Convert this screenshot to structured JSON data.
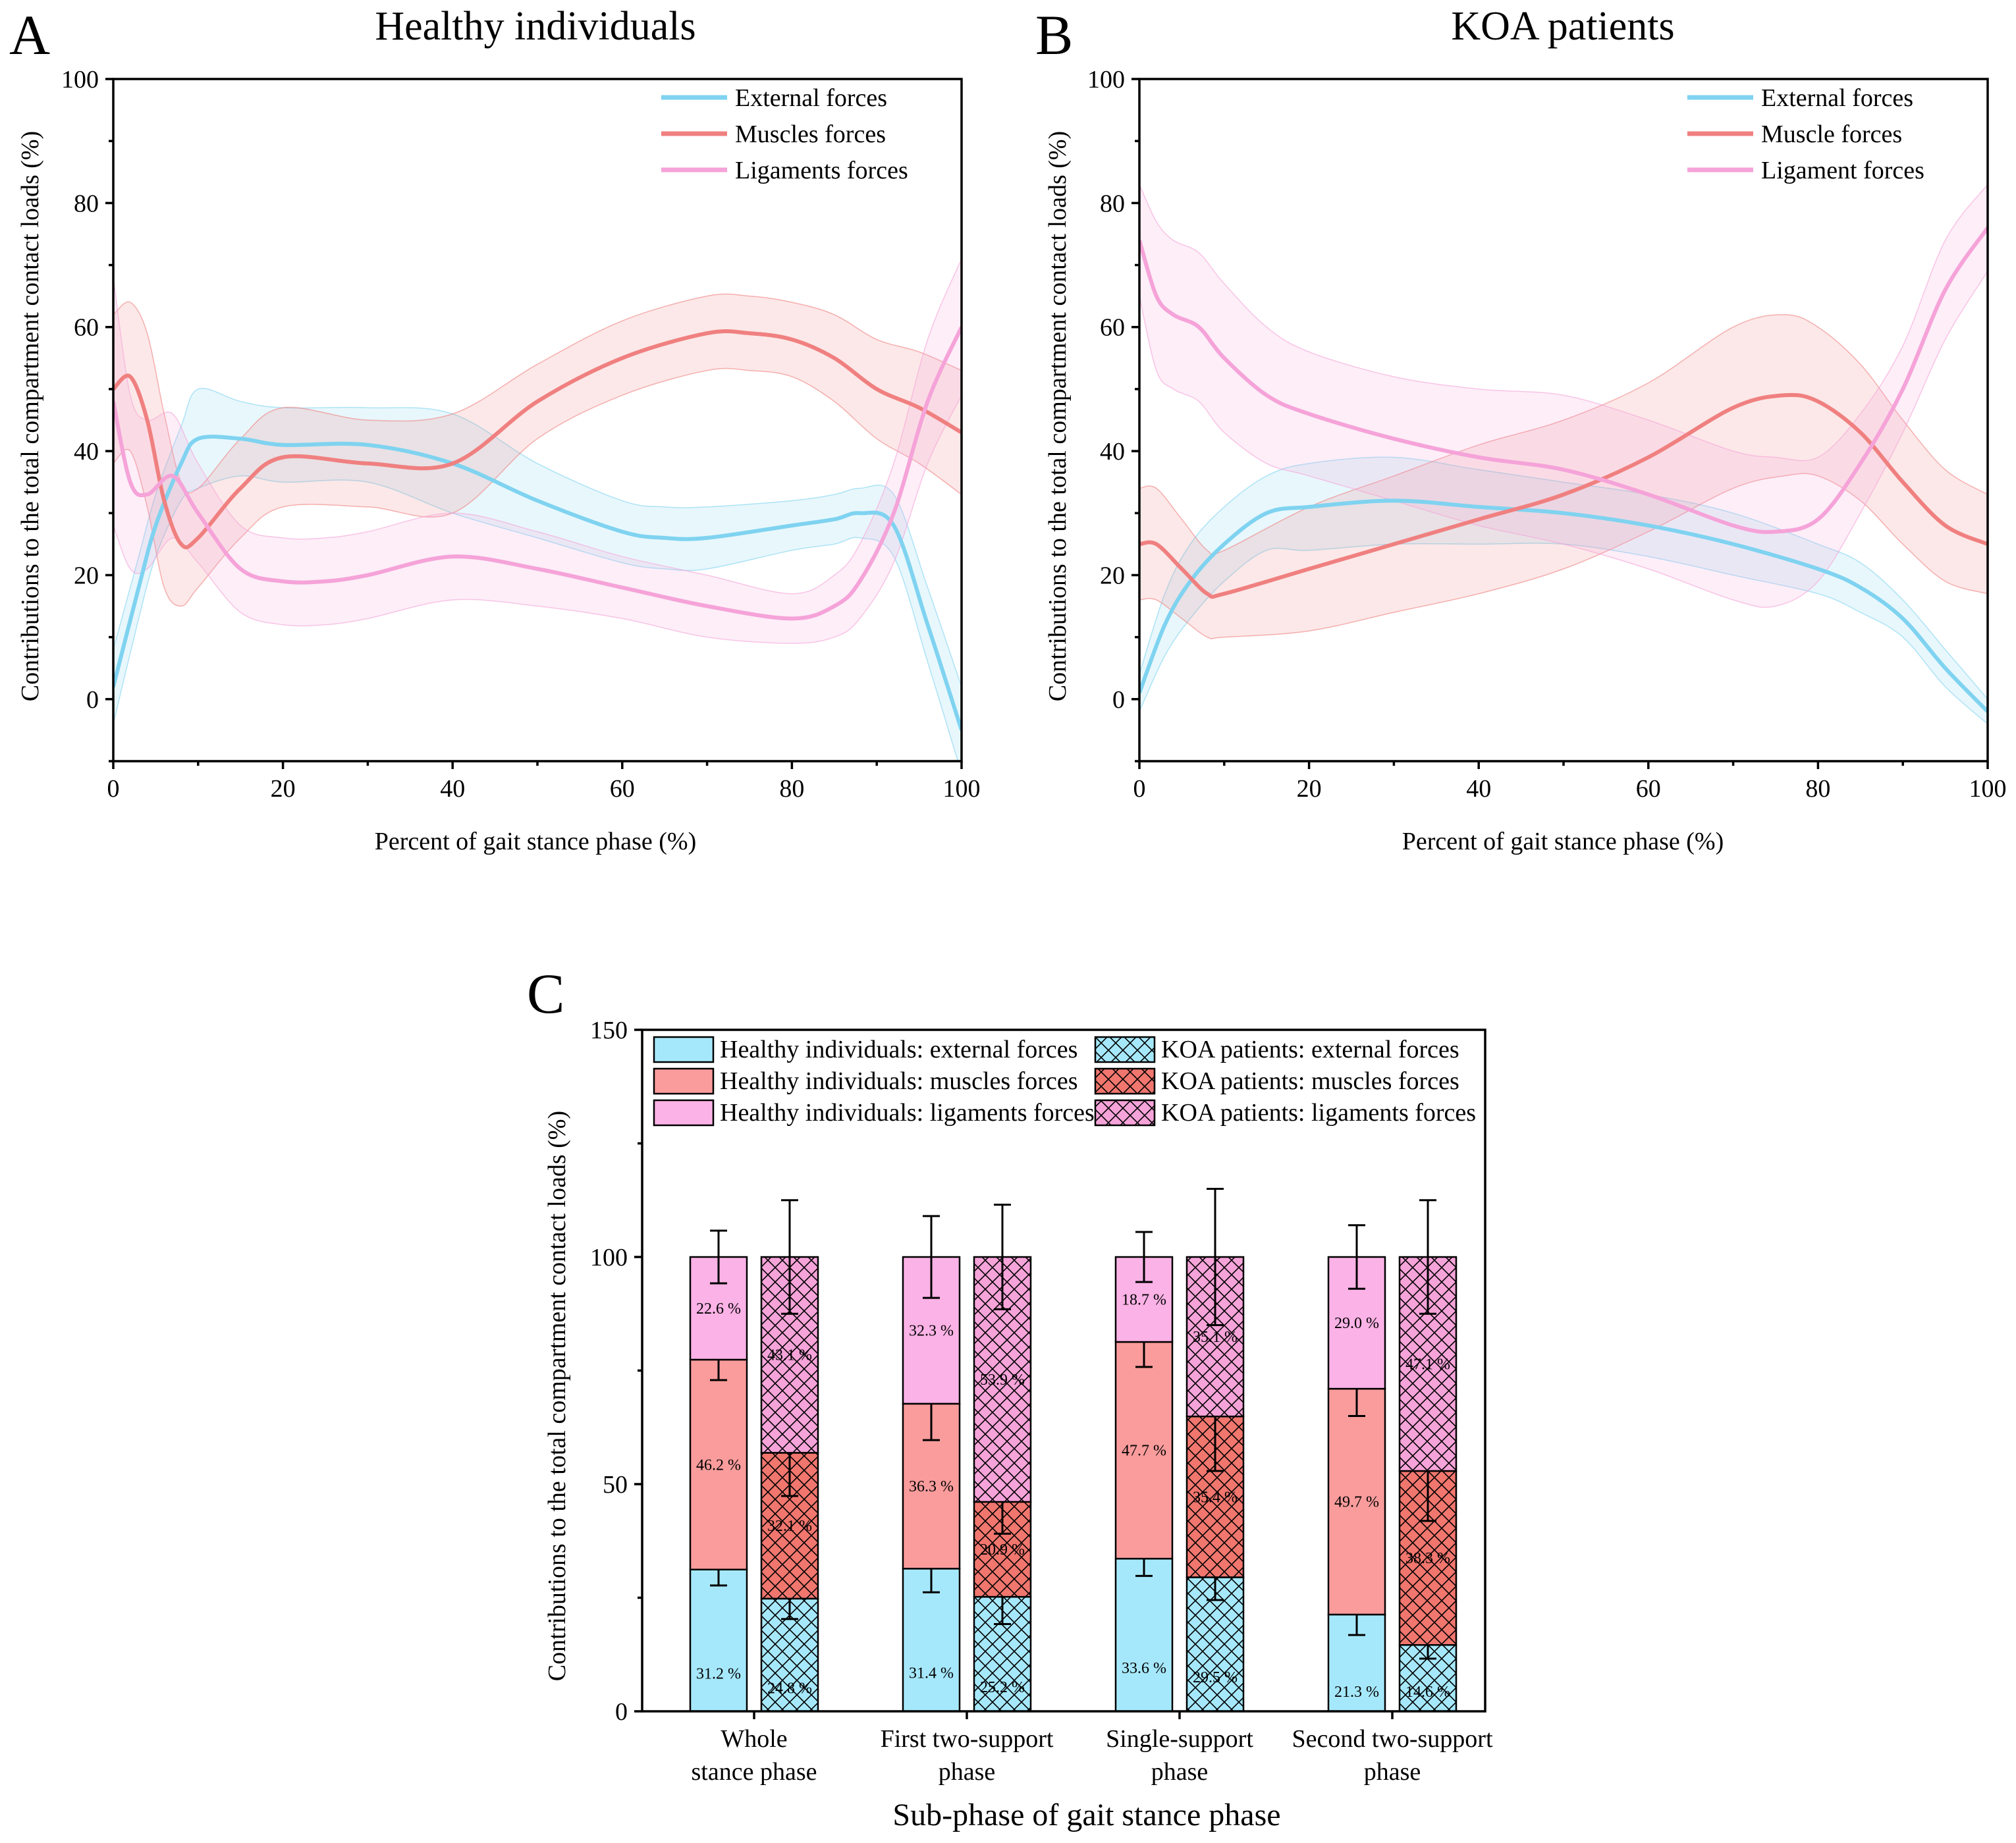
{
  "colors": {
    "external": "#7fd3f0",
    "muscle": "#f08080",
    "ligament": "#f5a3d9",
    "bar_external": "#a6e8fb",
    "bar_muscle": "#fa9c9c",
    "bar_ligament": "#fbb2e6"
  },
  "chart_data": [
    {
      "id": "A",
      "type": "line",
      "panel_label": "A",
      "title": "Healthy individuals",
      "xlabel": "Percent of gait stance phase (%)",
      "ylabel": "Contributions to the total compartment contact loads (%)",
      "xlim": [
        0,
        100
      ],
      "ylim": [
        -10,
        100
      ],
      "xticks": [
        "0",
        "20",
        "40",
        "60",
        "80",
        "100"
      ],
      "yticks": [
        "0",
        "20",
        "40",
        "60",
        "80",
        "100"
      ],
      "legend_position": "top-right",
      "series": [
        {
          "name": "External forces",
          "color_key": "external",
          "x": [
            0,
            3,
            5,
            8,
            10,
            15,
            20,
            30,
            40,
            50,
            60,
            65,
            70,
            80,
            85,
            88,
            92,
            96,
            100
          ],
          "y": [
            2,
            18,
            28,
            38,
            42,
            42,
            41,
            41,
            38,
            32,
            27,
            26,
            26,
            28,
            29,
            30,
            28,
            12,
            -5
          ],
          "band": [
            6,
            5,
            5,
            6,
            8,
            6,
            6,
            6,
            8,
            6,
            5,
            5,
            5,
            4,
            4,
            4,
            5,
            6,
            7
          ]
        },
        {
          "name": "Muscles forces",
          "color_key": "muscle",
          "x": [
            0,
            2,
            4,
            6,
            8,
            10,
            15,
            20,
            30,
            40,
            50,
            60,
            70,
            75,
            80,
            85,
            90,
            95,
            100
          ],
          "y": [
            50,
            52,
            45,
            32,
            25,
            26,
            34,
            39,
            38,
            38,
            48,
            55,
            59,
            59,
            58,
            55,
            50,
            47,
            43
          ],
          "band": [
            12,
            12,
            14,
            14,
            10,
            8,
            8,
            8,
            7,
            8,
            6,
            6,
            6,
            6,
            6,
            7,
            8,
            9,
            10
          ]
        },
        {
          "name": "Ligaments forces",
          "color_key": "ligament",
          "x": [
            0,
            2,
            4,
            7,
            10,
            15,
            20,
            25,
            30,
            40,
            50,
            60,
            70,
            80,
            85,
            88,
            92,
            96,
            100
          ],
          "y": [
            48,
            35,
            33,
            36,
            30,
            21,
            19,
            19,
            20,
            23,
            21,
            18,
            15,
            13,
            15,
            19,
            30,
            48,
            60
          ],
          "band": [
            20,
            14,
            12,
            10,
            8,
            7,
            7,
            7,
            7,
            7,
            6,
            5,
            5,
            4,
            5,
            6,
            8,
            10,
            11
          ]
        }
      ]
    },
    {
      "id": "B",
      "type": "line",
      "panel_label": "B",
      "title": "KOA patients",
      "xlabel": "Percent of gait stance phase (%)",
      "ylabel": "Contributions to the total compartment contact loads (%)",
      "xlim": [
        0,
        100
      ],
      "ylim": [
        -10,
        100
      ],
      "xticks": [
        "0",
        "20",
        "40",
        "60",
        "80",
        "100"
      ],
      "yticks": [
        "0",
        "20",
        "40",
        "60",
        "80",
        "100"
      ],
      "legend_position": "top-right",
      "series": [
        {
          "name": "External forces",
          "color_key": "external",
          "x": [
            0,
            3,
            6,
            10,
            15,
            20,
            30,
            40,
            50,
            60,
            70,
            80,
            85,
            90,
            95,
            100
          ],
          "y": [
            1,
            12,
            19,
            25,
            30,
            31,
            32,
            31,
            30,
            28,
            25,
            21,
            18,
            13,
            5,
            -2
          ],
          "band": [
            3,
            5,
            6,
            6,
            6,
            7,
            7,
            6,
            5,
            5,
            5,
            4,
            4,
            3,
            3,
            2
          ]
        },
        {
          "name": "Muscle forces",
          "color_key": "muscle",
          "x": [
            0,
            2,
            5,
            8,
            10,
            20,
            30,
            40,
            50,
            60,
            70,
            76,
            80,
            85,
            90,
            95,
            100
          ],
          "y": [
            25,
            25,
            21,
            17,
            17,
            21,
            25,
            29,
            33,
            39,
            47,
            49,
            48,
            43,
            35,
            28,
            25
          ],
          "band": [
            9,
            9,
            8,
            7,
            7,
            10,
            11,
            12,
            12,
            12,
            13,
            13,
            12,
            11,
            10,
            9,
            8
          ]
        },
        {
          "name": "Ligament forces",
          "color_key": "ligament",
          "x": [
            0,
            2,
            4,
            7,
            10,
            15,
            20,
            30,
            40,
            50,
            60,
            70,
            75,
            80,
            85,
            90,
            95,
            100
          ],
          "y": [
            74,
            65,
            62,
            60,
            55,
            49,
            46,
            42,
            39,
            37,
            33,
            28,
            27,
            29,
            38,
            50,
            66,
            76
          ],
          "band": [
            9,
            12,
            12,
            12,
            12,
            11,
            10,
            10,
            11,
            12,
            12,
            12,
            12,
            10,
            8,
            7,
            8,
            7
          ]
        }
      ]
    },
    {
      "id": "C",
      "type": "bar",
      "stacked": true,
      "panel_label": "C",
      "xlabel": "Sub-phase of gait stance phase",
      "ylabel": "Contributions to the total compartment contact loads (%)",
      "ylim": [
        0,
        150
      ],
      "yticks": [
        "0",
        "50",
        "100",
        "150"
      ],
      "legend_position": "top",
      "categories": [
        [
          "Whole",
          "stance phase"
        ],
        [
          "First two-support",
          "phase"
        ],
        [
          "Single-support",
          "phase"
        ],
        [
          "Second two-support",
          "phase"
        ]
      ],
      "groups": [
        {
          "name": "Healthy individuals",
          "hatched": false,
          "stacks": [
            {
              "external": 31.2,
              "muscle": 46.2,
              "ligament": 22.6,
              "labels": [
                "31.2 %",
                "46.2 %",
                "22.6 %"
              ],
              "err": [
                3.5,
                4.5,
                5.8
              ]
            },
            {
              "external": 31.4,
              "muscle": 36.3,
              "ligament": 32.3,
              "labels": [
                "31.4 %",
                "36.3 %",
                "32.3 %"
              ],
              "err": [
                5.2,
                8.0,
                9.0
              ]
            },
            {
              "external": 33.6,
              "muscle": 47.7,
              "ligament": 18.7,
              "labels": [
                "33.6 %",
                "47.7 %",
                "18.7 %"
              ],
              "err": [
                3.8,
                5.5,
                5.5
              ]
            },
            {
              "external": 21.3,
              "muscle": 49.7,
              "ligament": 29.0,
              "labels": [
                "21.3 %",
                "49.7 %",
                "29.0 %"
              ],
              "err": [
                4.5,
                6.0,
                7.0
              ]
            }
          ]
        },
        {
          "name": "KOA patients",
          "hatched": true,
          "stacks": [
            {
              "external": 24.8,
              "muscle": 32.1,
              "ligament": 43.1,
              "labels": [
                "24.8 %",
                "32.1 %",
                "43.1 %"
              ],
              "err": [
                4.5,
                9.5,
                12.5
              ]
            },
            {
              "external": 25.2,
              "muscle": 20.9,
              "ligament": 53.9,
              "labels": [
                "25.2 %",
                "20.9 %",
                "53.9 %"
              ],
              "err": [
                6.0,
                7.0,
                11.5
              ]
            },
            {
              "external": 29.5,
              "muscle": 35.4,
              "ligament": 35.1,
              "labels": [
                "29.5 %",
                "35.4 %",
                "35.1 %"
              ],
              "err": [
                5.0,
                12.0,
                15.0
              ]
            },
            {
              "external": 14.6,
              "muscle": 38.3,
              "ligament": 47.1,
              "labels": [
                "14.6 %",
                "38.3 %",
                "47.1 %"
              ],
              "err": [
                3.0,
                11.0,
                12.5
              ]
            }
          ]
        }
      ],
      "legend": [
        {
          "label": "Healthy individuals: external forces",
          "key": "external",
          "hatched": false
        },
        {
          "label": "KOA patients: external forces",
          "key": "external",
          "hatched": true
        },
        {
          "label": "Healthy individuals: muscles forces",
          "key": "muscle",
          "hatched": false
        },
        {
          "label": "KOA patients: muscles forces",
          "key": "muscle",
          "hatched": true
        },
        {
          "label": "Healthy individuals: ligaments forces",
          "key": "ligament",
          "hatched": false
        },
        {
          "label": "KOA patients: ligaments forces",
          "key": "ligament",
          "hatched": true
        }
      ]
    }
  ]
}
